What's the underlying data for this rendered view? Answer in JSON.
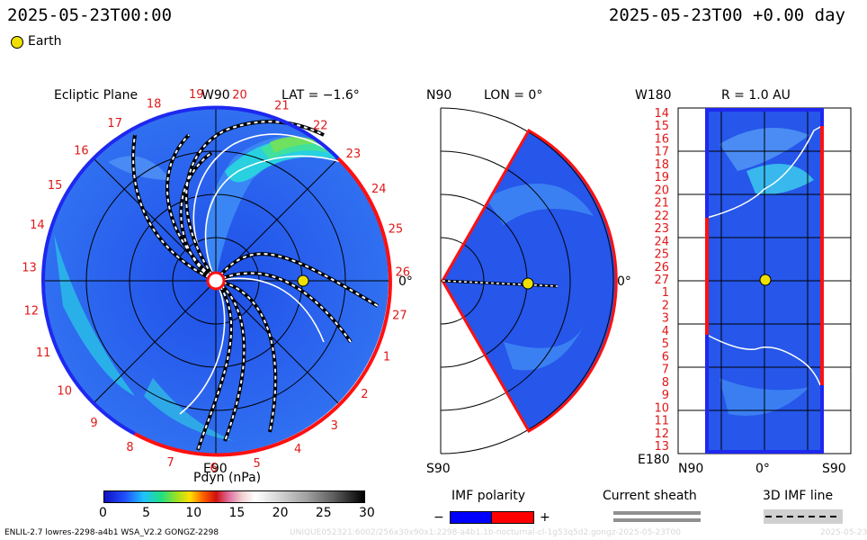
{
  "header": {
    "left_time": "2025-05-23T00:00",
    "right_time": "2025-05-23T00 +0.00 day"
  },
  "legend": {
    "earth_label": "Earth",
    "earth_color": "#f0e000"
  },
  "ecliptic": {
    "title": "Ecliptic Plane",
    "lat_label": "LAT = −1.6°",
    "top_label": "W90",
    "bottom_label": "E90",
    "right_label": "0°",
    "carrington_labels": [
      "19",
      "20",
      "21",
      "22",
      "23",
      "24",
      "25",
      "26",
      "27",
      "1",
      "2",
      "3",
      "4",
      "5",
      "6",
      "7",
      "8",
      "9",
      "10",
      "11",
      "12",
      "13",
      "14",
      "15",
      "16",
      "17",
      "18"
    ],
    "rotation_numbers": [
      "1",
      "2",
      "3",
      "4",
      "5",
      "6",
      "7",
      "8",
      "9",
      "10",
      "11",
      "12",
      "13",
      "14",
      "15",
      "16",
      "17",
      "18",
      "19",
      "20",
      "21",
      "22",
      "23",
      "24",
      "25",
      "26",
      "27"
    ]
  },
  "meridional": {
    "top_left": "N90",
    "title": "LON = 0°",
    "bottom_left": "S90",
    "right_label": "0°"
  },
  "radial": {
    "title": "R = 1.0 AU",
    "top_left": "W180",
    "bottom_left": "E180",
    "x_ticks": [
      "N90",
      "0°",
      "S90"
    ],
    "y_ticks": [
      "14",
      "15",
      "16",
      "17",
      "18",
      "19",
      "20",
      "21",
      "22",
      "23",
      "24",
      "25",
      "26",
      "27",
      "1",
      "2",
      "3",
      "4",
      "5",
      "6",
      "7",
      "8",
      "9",
      "10",
      "11",
      "12",
      "13"
    ]
  },
  "colorbar": {
    "title": "Pdyn (nPa)",
    "ticks": [
      "0",
      "5",
      "10",
      "15",
      "20",
      "25",
      "30"
    ]
  },
  "imf_polarity": {
    "title": "IMF polarity",
    "minus": "−",
    "plus": "+",
    "neg_color": "#0000ff",
    "pos_color": "#ff0000"
  },
  "current_sheath": {
    "title": "Current sheath"
  },
  "imf_line": {
    "title": "3D IMF line"
  },
  "footer": {
    "model": "ENLIL-2.7 lowres-2298-a4b1 WSA_V2.2 GONGZ-2298",
    "run_id": "UNIQUE052321:6002/256x30x90x1:2298-a4b1.1b-nocturnal-cl-1g53q5d2.gongz-2025-05-23T00",
    "date_stub": "2025-05-23"
  },
  "chart_data": [
    {
      "type": "heatmap",
      "title": "Ecliptic Plane",
      "quantity": "Pdyn (nPa)",
      "subtitle": "LAT = −1.6°",
      "range": [
        0,
        30
      ],
      "earth_longitude_deg": 0,
      "earth_distance_au": 1.0
    },
    {
      "type": "heatmap",
      "title": "LON = 0°",
      "range": [
        0,
        30
      ]
    },
    {
      "type": "heatmap",
      "title": "R = 1.0 AU",
      "range": [
        0,
        30
      ]
    }
  ]
}
